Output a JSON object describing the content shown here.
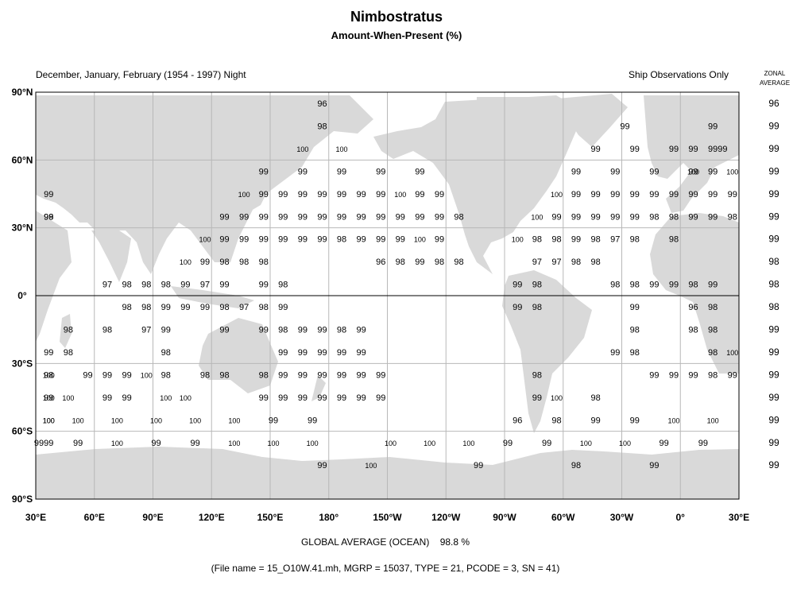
{
  "title": "Nimbostratus",
  "subtitle": "Amount-When-Present (%)",
  "left_header": "December, January, February (1954 - 1997) Night",
  "right_header": "Ship Observations Only",
  "zonal_header": [
    "ZONAL",
    "AVERAGE"
  ],
  "lat_labels": [
    "90°N",
    "60°N",
    "30°N",
    "0°",
    "30°S",
    "60°S",
    "90°S"
  ],
  "lon_labels": [
    "30°E",
    "60°E",
    "90°E",
    "120°E",
    "150°E",
    "180°",
    "150°W",
    "120°W",
    "90°W",
    "60°W",
    "30°W",
    "0°",
    "30°E"
  ],
  "zonal_average": [
    "96",
    "99",
    "99",
    "99",
    "99",
    "99",
    "99",
    "98",
    "98",
    "98",
    "99",
    "99",
    "99",
    "99",
    "99",
    "99",
    "99"
  ],
  "global_average_label": "GLOBAL AVERAGE (OCEAN)",
  "global_average_value": "98.8 %",
  "footer": "(File name = 15_O10W.41.mh, MGRP = 15037, TYPE = 21, PCODE = 3, SN = 41)",
  "colors": {
    "land": "#d9d9d9",
    "grid": "#b8b8b8",
    "frame": "#000000",
    "background": "#ffffff"
  },
  "cells": [
    [
      0,
      175,
      "96"
    ],
    [
      1,
      15,
      "99"
    ],
    [
      1,
      175,
      "98"
    ],
    [
      1,
      330,
      "99"
    ],
    [
      2,
      5,
      "99"
    ],
    [
      2,
      20,
      "99"
    ],
    [
      2,
      165,
      "100"
    ],
    [
      2,
      185,
      "100"
    ],
    [
      2,
      315,
      "99"
    ],
    [
      2,
      335,
      "99"
    ],
    [
      2,
      355,
      "99"
    ],
    [
      2,
      15,
      "99"
    ],
    [
      3,
      5,
      "100"
    ],
    [
      3,
      145,
      "99"
    ],
    [
      3,
      165,
      "99"
    ],
    [
      3,
      185,
      "99"
    ],
    [
      3,
      205,
      "99"
    ],
    [
      3,
      225,
      "99"
    ],
    [
      3,
      305,
      "99"
    ],
    [
      3,
      325,
      "99"
    ],
    [
      3,
      345,
      "99"
    ],
    [
      3,
      5,
      "99"
    ],
    [
      3,
      15,
      "99"
    ],
    [
      3,
      25,
      "100"
    ],
    [
      4,
      35,
      "99"
    ],
    [
      4,
      135,
      "100"
    ],
    [
      4,
      145,
      "99"
    ],
    [
      4,
      155,
      "99"
    ],
    [
      4,
      165,
      "99"
    ],
    [
      4,
      175,
      "99"
    ],
    [
      4,
      185,
      "99"
    ],
    [
      4,
      195,
      "99"
    ],
    [
      4,
      205,
      "99"
    ],
    [
      4,
      215,
      "100"
    ],
    [
      4,
      225,
      "99"
    ],
    [
      4,
      235,
      "99"
    ],
    [
      4,
      295,
      "100"
    ],
    [
      4,
      305,
      "99"
    ],
    [
      4,
      315,
      "99"
    ],
    [
      4,
      325,
      "99"
    ],
    [
      4,
      335,
      "99"
    ],
    [
      4,
      345,
      "99"
    ],
    [
      4,
      355,
      "99"
    ],
    [
      4,
      5,
      "99"
    ],
    [
      4,
      15,
      "99"
    ],
    [
      4,
      25,
      "99"
    ],
    [
      5,
      35,
      "99"
    ],
    [
      5,
      125,
      "99"
    ],
    [
      5,
      135,
      "99"
    ],
    [
      5,
      145,
      "99"
    ],
    [
      5,
      155,
      "99"
    ],
    [
      5,
      165,
      "99"
    ],
    [
      5,
      175,
      "99"
    ],
    [
      5,
      185,
      "99"
    ],
    [
      5,
      195,
      "99"
    ],
    [
      5,
      205,
      "99"
    ],
    [
      5,
      215,
      "99"
    ],
    [
      5,
      225,
      "99"
    ],
    [
      5,
      235,
      "99"
    ],
    [
      5,
      245,
      "98"
    ],
    [
      5,
      285,
      "100"
    ],
    [
      5,
      295,
      "99"
    ],
    [
      5,
      305,
      "99"
    ],
    [
      5,
      315,
      "99"
    ],
    [
      5,
      325,
      "99"
    ],
    [
      5,
      335,
      "99"
    ],
    [
      5,
      345,
      "98"
    ],
    [
      5,
      355,
      "98"
    ],
    [
      5,
      5,
      "99"
    ],
    [
      5,
      15,
      "99"
    ],
    [
      5,
      25,
      "98"
    ],
    [
      5,
      35,
      "98"
    ],
    [
      6,
      115,
      "100"
    ],
    [
      6,
      125,
      "99"
    ],
    [
      6,
      135,
      "99"
    ],
    [
      6,
      145,
      "99"
    ],
    [
      6,
      155,
      "99"
    ],
    [
      6,
      165,
      "99"
    ],
    [
      6,
      175,
      "99"
    ],
    [
      6,
      185,
      "98"
    ],
    [
      6,
      195,
      "99"
    ],
    [
      6,
      205,
      "99"
    ],
    [
      6,
      215,
      "99"
    ],
    [
      6,
      225,
      "100"
    ],
    [
      6,
      235,
      "99"
    ],
    [
      6,
      275,
      "100"
    ],
    [
      6,
      285,
      "98"
    ],
    [
      6,
      295,
      "98"
    ],
    [
      6,
      305,
      "99"
    ],
    [
      6,
      315,
      "98"
    ],
    [
      6,
      325,
      "97"
    ],
    [
      6,
      335,
      "98"
    ],
    [
      6,
      355,
      "98"
    ],
    [
      7,
      105,
      "100"
    ],
    [
      7,
      115,
      "99"
    ],
    [
      7,
      125,
      "98"
    ],
    [
      7,
      135,
      "98"
    ],
    [
      7,
      145,
      "98"
    ],
    [
      7,
      205,
      "96"
    ],
    [
      7,
      215,
      "98"
    ],
    [
      7,
      225,
      "99"
    ],
    [
      7,
      235,
      "98"
    ],
    [
      7,
      245,
      "98"
    ],
    [
      7,
      285,
      "97"
    ],
    [
      7,
      295,
      "97"
    ],
    [
      7,
      305,
      "98"
    ],
    [
      7,
      315,
      "98"
    ],
    [
      8,
      65,
      "97"
    ],
    [
      8,
      75,
      "98"
    ],
    [
      8,
      85,
      "98"
    ],
    [
      8,
      95,
      "98"
    ],
    [
      8,
      105,
      "99"
    ],
    [
      8,
      115,
      "97"
    ],
    [
      8,
      125,
      "99"
    ],
    [
      8,
      145,
      "99"
    ],
    [
      8,
      155,
      "98"
    ],
    [
      8,
      275,
      "99"
    ],
    [
      8,
      285,
      "98"
    ],
    [
      8,
      325,
      "98"
    ],
    [
      8,
      335,
      "98"
    ],
    [
      8,
      345,
      "99"
    ],
    [
      8,
      355,
      "99"
    ],
    [
      8,
      5,
      "98"
    ],
    [
      8,
      15,
      "99"
    ],
    [
      9,
      75,
      "98"
    ],
    [
      9,
      85,
      "98"
    ],
    [
      9,
      95,
      "99"
    ],
    [
      9,
      105,
      "99"
    ],
    [
      9,
      115,
      "99"
    ],
    [
      9,
      125,
      "98"
    ],
    [
      9,
      135,
      "97"
    ],
    [
      9,
      145,
      "98"
    ],
    [
      9,
      155,
      "99"
    ],
    [
      9,
      275,
      "99"
    ],
    [
      9,
      285,
      "98"
    ],
    [
      9,
      335,
      "99"
    ],
    [
      9,
      5,
      "96"
    ],
    [
      9,
      15,
      "98"
    ],
    [
      10,
      45,
      "98"
    ],
    [
      10,
      65,
      "98"
    ],
    [
      10,
      85,
      "97"
    ],
    [
      10,
      95,
      "99"
    ],
    [
      10,
      125,
      "99"
    ],
    [
      10,
      145,
      "99"
    ],
    [
      10,
      155,
      "98"
    ],
    [
      10,
      165,
      "99"
    ],
    [
      10,
      175,
      "99"
    ],
    [
      10,
      185,
      "98"
    ],
    [
      10,
      195,
      "99"
    ],
    [
      10,
      335,
      "98"
    ],
    [
      10,
      5,
      "98"
    ],
    [
      10,
      15,
      "98"
    ],
    [
      11,
      35,
      "99"
    ],
    [
      11,
      45,
      "98"
    ],
    [
      11,
      95,
      "98"
    ],
    [
      11,
      155,
      "99"
    ],
    [
      11,
      165,
      "99"
    ],
    [
      11,
      175,
      "99"
    ],
    [
      11,
      185,
      "99"
    ],
    [
      11,
      195,
      "99"
    ],
    [
      11,
      325,
      "99"
    ],
    [
      11,
      335,
      "98"
    ],
    [
      11,
      15,
      "98"
    ],
    [
      11,
      25,
      "100"
    ],
    [
      12,
      35,
      "100"
    ],
    [
      12,
      55,
      "99"
    ],
    [
      12,
      65,
      "99"
    ],
    [
      12,
      75,
      "99"
    ],
    [
      12,
      85,
      "100"
    ],
    [
      12,
      95,
      "98"
    ],
    [
      12,
      115,
      "98"
    ],
    [
      12,
      125,
      "98"
    ],
    [
      12,
      145,
      "98"
    ],
    [
      12,
      155,
      "99"
    ],
    [
      12,
      165,
      "99"
    ],
    [
      12,
      175,
      "99"
    ],
    [
      12,
      185,
      "99"
    ],
    [
      12,
      195,
      "99"
    ],
    [
      12,
      205,
      "99"
    ],
    [
      12,
      285,
      "98"
    ],
    [
      12,
      345,
      "99"
    ],
    [
      12,
      355,
      "99"
    ],
    [
      12,
      5,
      "99"
    ],
    [
      12,
      15,
      "98"
    ],
    [
      12,
      25,
      "99"
    ],
    [
      12,
      35,
      "98"
    ],
    [
      13,
      35,
      "100"
    ],
    [
      13,
      45,
      "100"
    ],
    [
      13,
      65,
      "99"
    ],
    [
      13,
      75,
      "99"
    ],
    [
      13,
      95,
      "100"
    ],
    [
      13,
      105,
      "100"
    ],
    [
      13,
      145,
      "99"
    ],
    [
      13,
      155,
      "99"
    ],
    [
      13,
      165,
      "99"
    ],
    [
      13,
      175,
      "99"
    ],
    [
      13,
      185,
      "99"
    ],
    [
      13,
      195,
      "99"
    ],
    [
      13,
      205,
      "99"
    ],
    [
      13,
      285,
      "99"
    ],
    [
      13,
      295,
      "100"
    ],
    [
      13,
      315,
      "98"
    ],
    [
      13,
      35,
      "99"
    ],
    [
      14,
      35,
      "100"
    ],
    [
      14,
      50,
      "100"
    ],
    [
      14,
      70,
      "100"
    ],
    [
      14,
      90,
      "100"
    ],
    [
      14,
      110,
      "100"
    ],
    [
      14,
      130,
      "100"
    ],
    [
      14,
      150,
      "99"
    ],
    [
      14,
      170,
      "99"
    ],
    [
      14,
      275,
      "96"
    ],
    [
      14,
      295,
      "98"
    ],
    [
      14,
      315,
      "99"
    ],
    [
      14,
      335,
      "99"
    ],
    [
      14,
      355,
      "100"
    ],
    [
      14,
      15,
      "100"
    ],
    [
      14,
      35,
      "100"
    ],
    [
      15,
      35,
      "99"
    ],
    [
      15,
      50,
      "99"
    ],
    [
      15,
      70,
      "100"
    ],
    [
      15,
      90,
      "99"
    ],
    [
      15,
      110,
      "99"
    ],
    [
      15,
      130,
      "100"
    ],
    [
      15,
      150,
      "100"
    ],
    [
      15,
      170,
      "100"
    ],
    [
      15,
      210,
      "100"
    ],
    [
      15,
      230,
      "100"
    ],
    [
      15,
      250,
      "100"
    ],
    [
      15,
      270,
      "99"
    ],
    [
      15,
      290,
      "99"
    ],
    [
      15,
      310,
      "100"
    ],
    [
      15,
      330,
      "100"
    ],
    [
      15,
      350,
      "99"
    ],
    [
      15,
      10,
      "99"
    ],
    [
      15,
      30,
      "99"
    ],
    [
      16,
      175,
      "99"
    ],
    [
      16,
      200,
      "100"
    ],
    [
      16,
      255,
      "99"
    ],
    [
      16,
      305,
      "98"
    ],
    [
      16,
      345,
      "99"
    ]
  ]
}
